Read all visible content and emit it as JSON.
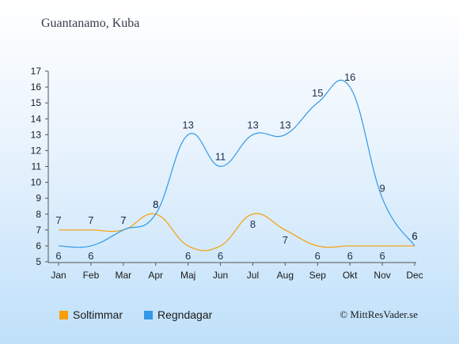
{
  "title": "Guantanamo, Kuba",
  "credit": "© MittResVader.se",
  "chart_data": {
    "type": "line",
    "categories": [
      "Jan",
      "Feb",
      "Mar",
      "Apr",
      "Maj",
      "Jun",
      "Jul",
      "Aug",
      "Sep",
      "Okt",
      "Nov",
      "Dec"
    ],
    "series": [
      {
        "name": "Soltimmar",
        "color": "#f5a00a",
        "values": [
          7,
          7,
          7,
          8,
          6,
          6,
          8,
          7,
          6,
          6,
          6,
          6
        ]
      },
      {
        "name": "Regndagar",
        "color": "#3399e6",
        "values": [
          6,
          6,
          7,
          8,
          13,
          11,
          13,
          13,
          15,
          16,
          9,
          6
        ]
      }
    ],
    "yticks": [
      5,
      6,
      7,
      8,
      9,
      10,
      11,
      12,
      13,
      14,
      15,
      16,
      17
    ],
    "ylim": [
      5,
      17
    ],
    "grid": false,
    "legend_position": "bottom-left"
  }
}
